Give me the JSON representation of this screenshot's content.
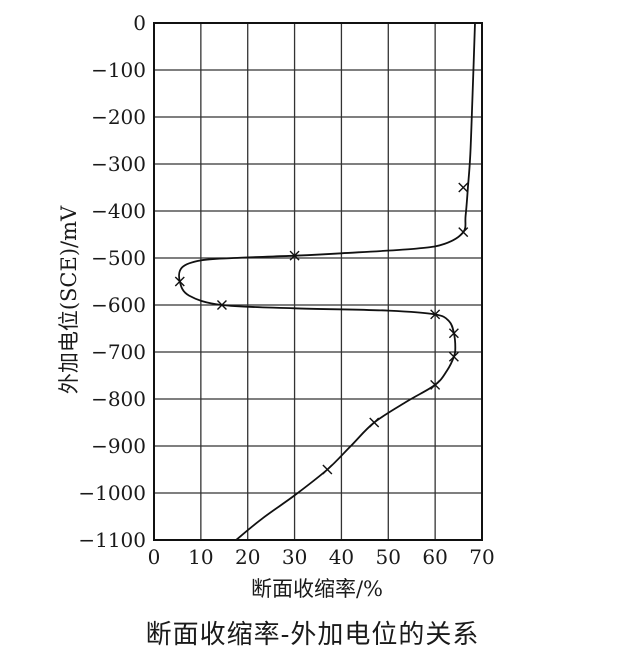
{
  "caption": "断面收缩率-外加电位的关系",
  "chart_data": {
    "type": "scatter",
    "xlabel": "断面收缩率/%",
    "ylabel": "外加电位(SCE)/mV",
    "xlim": [
      0,
      70
    ],
    "ylim": [
      -1100,
      0
    ],
    "xticks": [
      0,
      10,
      20,
      30,
      40,
      50,
      60,
      70
    ],
    "yticks": [
      0,
      -100,
      -200,
      -300,
      -400,
      -500,
      -600,
      -700,
      -800,
      -900,
      -1000,
      -1100
    ],
    "grid": true,
    "points": [
      {
        "x": 66,
        "y": -350
      },
      {
        "x": 66,
        "y": -445
      },
      {
        "x": 30,
        "y": -495
      },
      {
        "x": 5.5,
        "y": -550
      },
      {
        "x": 14.5,
        "y": -600
      },
      {
        "x": 60,
        "y": -620
      },
      {
        "x": 64,
        "y": -660
      },
      {
        "x": 64,
        "y": -710
      },
      {
        "x": 60,
        "y": -770
      },
      {
        "x": 47,
        "y": -850
      },
      {
        "x": 37,
        "y": -950
      }
    ],
    "curve": [
      {
        "x": 68.5,
        "y": 0
      },
      {
        "x": 68,
        "y": -150
      },
      {
        "x": 67.5,
        "y": -280
      },
      {
        "x": 67,
        "y": -350
      },
      {
        "x": 66.5,
        "y": -410
      },
      {
        "x": 66,
        "y": -445
      },
      {
        "x": 62,
        "y": -470
      },
      {
        "x": 56,
        "y": -480
      },
      {
        "x": 40,
        "y": -490
      },
      {
        "x": 30,
        "y": -495
      },
      {
        "x": 17,
        "y": -500
      },
      {
        "x": 10,
        "y": -505
      },
      {
        "x": 6,
        "y": -520
      },
      {
        "x": 5.5,
        "y": -550
      },
      {
        "x": 7.5,
        "y": -580
      },
      {
        "x": 14.5,
        "y": -600
      },
      {
        "x": 30,
        "y": -607
      },
      {
        "x": 50,
        "y": -612
      },
      {
        "x": 60,
        "y": -620
      },
      {
        "x": 63,
        "y": -635
      },
      {
        "x": 64,
        "y": -660
      },
      {
        "x": 64.3,
        "y": -690
      },
      {
        "x": 64,
        "y": -710
      },
      {
        "x": 62.5,
        "y": -740
      },
      {
        "x": 60,
        "y": -770
      },
      {
        "x": 54,
        "y": -805
      },
      {
        "x": 47,
        "y": -850
      },
      {
        "x": 42,
        "y": -900
      },
      {
        "x": 37,
        "y": -950
      },
      {
        "x": 30,
        "y": -1005
      },
      {
        "x": 23,
        "y": -1055
      },
      {
        "x": 17.5,
        "y": -1100
      }
    ]
  }
}
